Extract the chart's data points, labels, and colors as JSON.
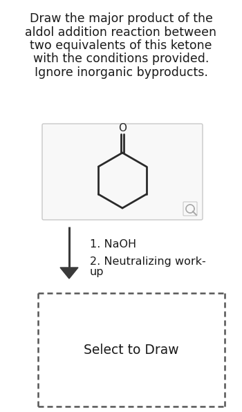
{
  "title_lines": [
    "Draw the major product of the",
    "aldol addition reaction between",
    "two equivalents of this ketone",
    "with the conditions provided.",
    "Ignore inorganic byproducts."
  ],
  "title_fontsize": 12.5,
  "bg_color": "#ffffff",
  "text_color": "#1a1a1a",
  "box_bg": "#f8f8f8",
  "box_border": "#c8c8c8",
  "arrow_color": "#3a3a3a",
  "conditions_line1": "1. NaOH",
  "conditions_line2": "2. Neutralizing work-",
  "conditions_line3": "up",
  "conditions_fontsize": 11.5,
  "select_text": "Select to Draw",
  "select_fontsize": 13.5,
  "dashed_border": "#555555",
  "ring_color": "#2a2a2a",
  "magnifier_color": "#aaaaaa",
  "lw_ring": 2.0
}
